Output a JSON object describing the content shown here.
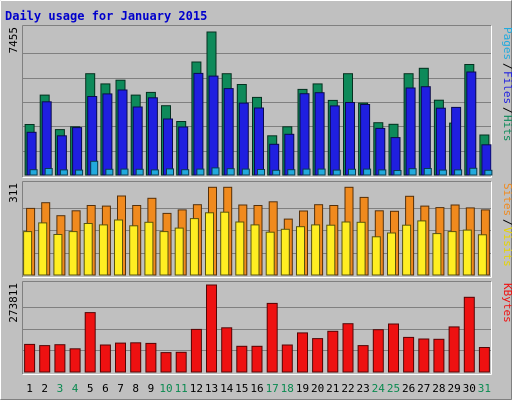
{
  "chart_data": {
    "type": "bar",
    "title": "Daily usage for January 2015",
    "categories": [
      "1",
      "2",
      "3",
      "4",
      "5",
      "6",
      "7",
      "8",
      "9",
      "10",
      "11",
      "12",
      "13",
      "14",
      "15",
      "16",
      "17",
      "18",
      "19",
      "20",
      "21",
      "22",
      "23",
      "24",
      "25",
      "26",
      "27",
      "28",
      "29",
      "30",
      "31"
    ],
    "weekend_days": [
      "3",
      "4",
      "10",
      "11",
      "17",
      "18",
      "24",
      "25",
      "31"
    ],
    "grid": true,
    "legend": "right",
    "panels": [
      {
        "name": "hits-files-pages",
        "max_label": "7455",
        "ylim": [
          0,
          7455
        ],
        "legend_labels": [
          "Pages",
          "Files",
          "Hits"
        ],
        "series": [
          {
            "name": "Hits",
            "color": "#0e8a5a",
            "values": [
              2580,
              4080,
              2320,
              2460,
              5170,
              4650,
              4840,
              4080,
              4220,
              3540,
              2730,
              5770,
              7300,
              5170,
              4620,
              3960,
              2000,
              2460,
              4370,
              4650,
              3810,
              5170,
              3670,
              2670,
              2590,
              5170,
              5450,
              3820,
              2650,
              5640,
              2040
            ]
          },
          {
            "name": "Files",
            "color": "#1f1fe0",
            "values": [
              2180,
              3740,
              2000,
              2420,
              4010,
              4140,
              4340,
              3470,
              3940,
              2860,
              2450,
              5190,
              5050,
              4410,
              3670,
              3420,
              1570,
              2080,
              4150,
              4200,
              3530,
              3700,
              3600,
              2380,
              1910,
              4440,
              4510,
              3410,
              3450,
              5260,
              1540
            ]
          },
          {
            "name": "Pages",
            "color": "#22aadd",
            "values": [
              270,
              330,
              260,
              250,
              700,
              290,
              300,
              290,
              260,
              310,
              270,
              300,
              360,
              320,
              300,
              280,
              240,
              270,
              300,
              300,
              250,
              290,
              300,
              260,
              230,
              320,
              330,
              250,
              260,
              340,
              240
            ]
          }
        ]
      },
      {
        "name": "visits-sites",
        "max_label": "311",
        "ylim": [
          0,
          311
        ],
        "legend_labels": [
          "Sites",
          "Visits"
        ],
        "series": [
          {
            "name": "Visits",
            "color": "#f08a1e",
            "values": [
              230,
              250,
              205,
              222,
              240,
              238,
              273,
              240,
              265,
              213,
              225,
              243,
              303,
              303,
              242,
              240,
              253,
              193,
              221,
              243,
              240,
              303,
              268,
              222,
              220,
              272,
              238,
              233,
              242,
              232,
              225
            ]
          },
          {
            "name": "Sites",
            "color": "#ffee22",
            "values": [
              150,
              180,
              140,
              150,
              178,
              173,
              190,
              170,
              182,
              150,
              162,
              195,
              215,
              217,
              183,
              173,
              148,
              158,
              167,
              173,
              172,
              183,
              182,
              132,
              145,
              172,
              187,
              143,
              150,
              155,
              139
            ]
          }
        ]
      },
      {
        "name": "kbytes",
        "max_label": "273811",
        "ylim": [
          0,
          273811
        ],
        "legend_labels": [
          "KBytes"
        ],
        "series": [
          {
            "name": "KBytes",
            "color": "#ee1111",
            "values": [
              87000,
              83000,
              86000,
              73000,
              187000,
              85000,
              91000,
              92000,
              90000,
              61000,
              62000,
              134000,
              278000,
              139000,
              81000,
              81000,
              216000,
              85000,
              123000,
              105000,
              128000,
              152000,
              83000,
              133000,
              151000,
              109000,
              104000,
              103000,
              142000,
              235000,
              77000
            ]
          }
        ]
      }
    ]
  }
}
